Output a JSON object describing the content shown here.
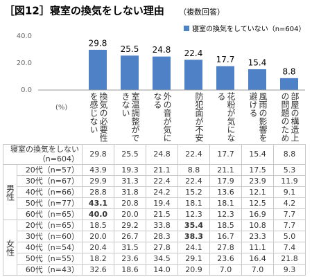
{
  "title": "［図12］寝室の換気をしない理由",
  "subtitle": "（複数回答）",
  "chart_data": {
    "type": "bar",
    "unit_label": "(%)",
    "categories": [
      "換気の必要性を感じない",
      "室温調整ができない",
      "外の音が気になる",
      "防犯面が不安",
      "花粉が気になる",
      "風雨の影響を避ける",
      "部屋の構造上の問題のため"
    ],
    "series": [
      {
        "name": "寝室の換気をしていない（n=604）",
        "color": "#4f81c7",
        "values": [
          29.8,
          25.5,
          24.8,
          22.4,
          17.7,
          15.4,
          8.8
        ]
      }
    ],
    "ylim": [
      0,
      40
    ],
    "yticks": [
      {
        "value": 0,
        "label": "0.0"
      },
      {
        "value": 20,
        "label": "20.0"
      },
      {
        "value": 40,
        "label": "40.0"
      }
    ],
    "grid": false,
    "legend": "top-right"
  },
  "table": {
    "total_row": {
      "label": "寝室の換気をしない（n=604）",
      "values": [
        "29.8",
        "25.5",
        "24.8",
        "22.4",
        "17.7",
        "15.4",
        "8.8"
      ]
    },
    "groups": [
      {
        "name": "男性",
        "rows": [
          {
            "label": "20代（n=57）",
            "values": [
              "43.9",
              "19.3",
              "21.1",
              "8.8",
              "21.1",
              "17.5",
              "5.3"
            ]
          },
          {
            "label": "30代（n=67）",
            "values": [
              "29.9",
              "31.3",
              "22.4",
              "22.4",
              "17.9",
              "23.9",
              "11.9"
            ]
          },
          {
            "label": "40代（n=66）",
            "values": [
              "28.8",
              "31.8",
              "24.2",
              "15.2",
              "13.6",
              "12.1",
              "9.1"
            ]
          },
          {
            "label": "50代（n=77）",
            "values": [
              "43.1",
              "20.8",
              "19.4",
              "18.1",
              "18.1",
              "12.5",
              "4.2"
            ]
          },
          {
            "label": "60代（n=65）",
            "values": [
              "40.0",
              "20.0",
              "21.5",
              "12.3",
              "12.3",
              "16.9",
              "7.7"
            ]
          }
        ]
      },
      {
        "name": "女性",
        "rows": [
          {
            "label": "20代（n=65）",
            "values": [
              "18.5",
              "29.2",
              "33.8",
              "35.4",
              "18.5",
              "10.8",
              "7.7"
            ]
          },
          {
            "label": "30代（n=60）",
            "values": [
              "20.0",
              "26.7",
              "28.3",
              "38.3",
              "16.7",
              "23.3",
              "5.0"
            ]
          },
          {
            "label": "40代（n=54）",
            "values": [
              "20.4",
              "31.5",
              "27.8",
              "24.1",
              "27.8",
              "11.1",
              "7.4"
            ]
          },
          {
            "label": "50代（n=55）",
            "values": [
              "18.2",
              "23.6",
              "34.5",
              "29.1",
              "23.6",
              "16.4",
              "21.8"
            ]
          },
          {
            "label": "60代（n=43）",
            "values": [
              "32.6",
              "18.6",
              "14.0",
              "20.9",
              "7.0",
              "7.0",
              "9.3"
            ]
          }
        ]
      }
    ]
  }
}
